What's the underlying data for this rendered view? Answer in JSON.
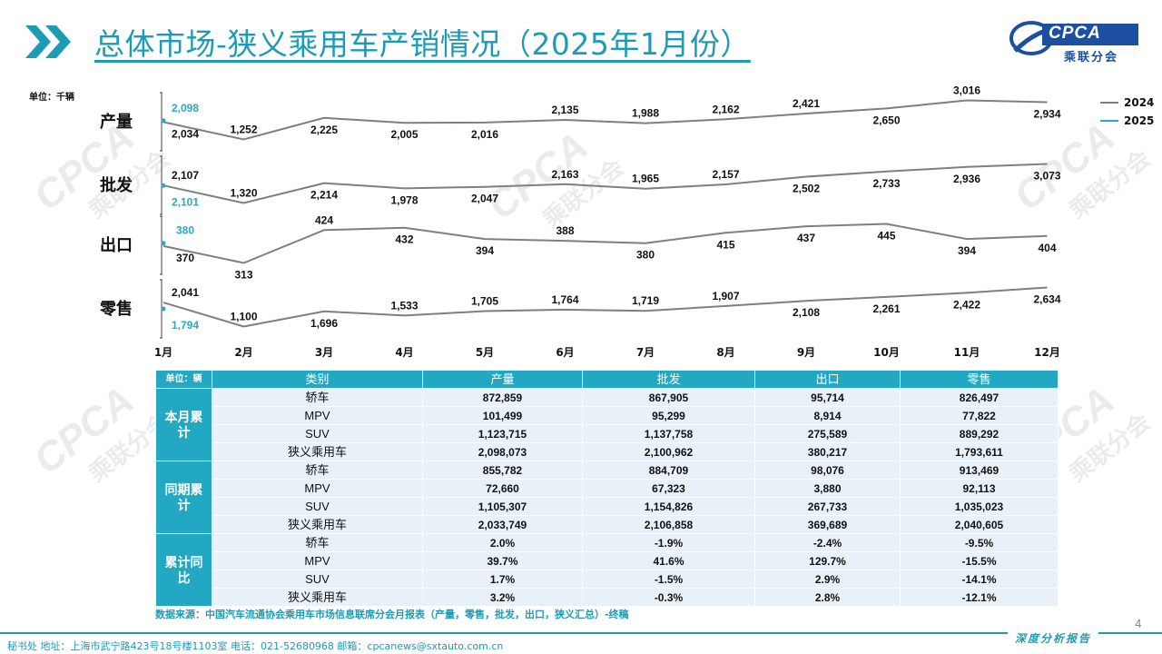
{
  "header": {
    "title": "总体市场-狭义乘用车产销情况（2025年1月份）",
    "logo_text": "CPCA",
    "logo_sub": "乘联分会",
    "accent": "#1d9bb5"
  },
  "chart_data": {
    "type": "line",
    "unit_label": "单位：千辆",
    "categories": [
      "1月",
      "2月",
      "3月",
      "4月",
      "5月",
      "6月",
      "7月",
      "8月",
      "9月",
      "10月",
      "11月",
      "12月"
    ],
    "legend": [
      "2024",
      "2025"
    ],
    "legend_position": "top-right",
    "colors": {
      "2024": "#7f7f7f",
      "2025": "#2aa9c4"
    },
    "panels": [
      {
        "label": "产量",
        "series_2024": [
          2034,
          1252,
          2225,
          2005,
          2016,
          2135,
          1988,
          2162,
          2421,
          2650,
          3016,
          2934
        ],
        "series_2025": [
          2098
        ],
        "label_pos": [
          "below",
          "above",
          "below",
          "below",
          "below",
          "above",
          "above",
          "above",
          "above",
          "below",
          "above",
          "below"
        ]
      },
      {
        "label": "批发",
        "series_2024": [
          2107,
          1320,
          2214,
          1978,
          2047,
          2163,
          1965,
          2157,
          2502,
          2733,
          2936,
          3073
        ],
        "series_2025": [
          2101
        ],
        "label_pos": [
          "above",
          "above",
          "below",
          "below",
          "below",
          "above",
          "above",
          "above",
          "below",
          "below",
          "below",
          "below"
        ]
      },
      {
        "label": "出口",
        "series_2024": [
          370,
          313,
          424,
          432,
          394,
          388,
          380,
          415,
          437,
          445,
          394,
          404
        ],
        "series_2025": [
          380
        ],
        "label_pos": [
          "below",
          "below",
          "above",
          "below",
          "below",
          "above",
          "below",
          "below",
          "below",
          "below",
          "below",
          "below"
        ]
      },
      {
        "label": "零售",
        "series_2024": [
          2041,
          1100,
          1696,
          1533,
          1705,
          1764,
          1719,
          1907,
          2108,
          2261,
          2422,
          2634
        ],
        "series_2025": [
          1794
        ],
        "label_pos": [
          "above",
          "above",
          "below",
          "above",
          "above",
          "above",
          "above",
          "above",
          "below",
          "below",
          "below",
          "below"
        ]
      }
    ]
  },
  "table": {
    "unit": "单位：辆",
    "columns": [
      "类别",
      "产量",
      "批发",
      "出口",
      "零售"
    ],
    "groups": [
      {
        "name": "本月累计",
        "rows": [
          {
            "cat": "轿车",
            "vals": [
              "872,859",
              "867,905",
              "95,714",
              "826,497"
            ]
          },
          {
            "cat": "MPV",
            "vals": [
              "101,499",
              "95,299",
              "8,914",
              "77,822"
            ]
          },
          {
            "cat": "SUV",
            "vals": [
              "1,123,715",
              "1,137,758",
              "275,589",
              "889,292"
            ]
          },
          {
            "cat": "狭义乘用车",
            "vals": [
              "2,098,073",
              "2,100,962",
              "380,217",
              "1,793,611"
            ]
          }
        ]
      },
      {
        "name": "同期累计",
        "rows": [
          {
            "cat": "轿车",
            "vals": [
              "855,782",
              "884,709",
              "98,076",
              "913,469"
            ]
          },
          {
            "cat": "MPV",
            "vals": [
              "72,660",
              "67,323",
              "3,880",
              "92,113"
            ]
          },
          {
            "cat": "SUV",
            "vals": [
              "1,105,307",
              "1,154,826",
              "267,733",
              "1,035,023"
            ]
          },
          {
            "cat": "狭义乘用车",
            "vals": [
              "2,033,749",
              "2,106,858",
              "369,689",
              "2,040,605"
            ]
          }
        ]
      },
      {
        "name": "累计同比",
        "rows": [
          {
            "cat": "轿车",
            "vals": [
              "2.0%",
              "-1.9%",
              "-2.4%",
              "-9.5%"
            ]
          },
          {
            "cat": "MPV",
            "vals": [
              "39.7%",
              "41.6%",
              "129.7%",
              "-15.5%"
            ]
          },
          {
            "cat": "SUV",
            "vals": [
              "1.7%",
              "-1.5%",
              "2.9%",
              "-14.1%"
            ]
          },
          {
            "cat": "狭义乘用车",
            "vals": [
              "3.2%",
              "-0.3%",
              "2.8%",
              "-12.1%"
            ]
          }
        ]
      }
    ]
  },
  "source": "数据来源：中国汽车流通协会乘用车市场信息联席分会月报表（产量，零售，批发，出口，狭义汇总）-终稿",
  "page_number": "4",
  "footer": {
    "text": "秘书处   地址：上海市武宁路423号18号楼1103室   电话：021-52680968   邮箱：cpcanews@sxtauto.com.cn",
    "brand": "深度分析报告"
  }
}
